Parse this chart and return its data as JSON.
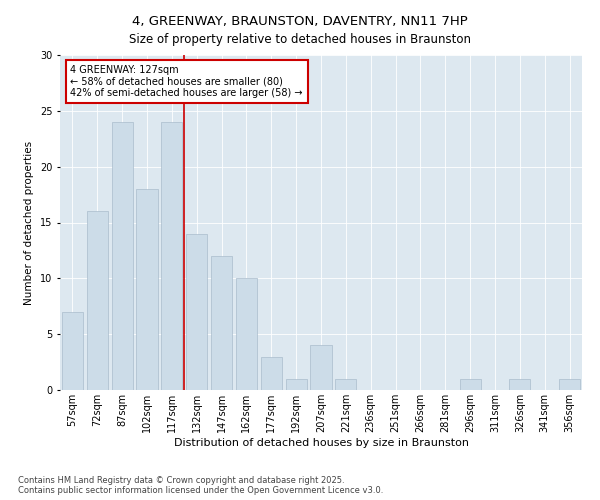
{
  "title": "4, GREENWAY, BRAUNSTON, DAVENTRY, NN11 7HP",
  "subtitle": "Size of property relative to detached houses in Braunston",
  "xlabel": "Distribution of detached houses by size in Braunston",
  "ylabel": "Number of detached properties",
  "categories": [
    "57sqm",
    "72sqm",
    "87sqm",
    "102sqm",
    "117sqm",
    "132sqm",
    "147sqm",
    "162sqm",
    "177sqm",
    "192sqm",
    "207sqm",
    "221sqm",
    "236sqm",
    "251sqm",
    "266sqm",
    "281sqm",
    "296sqm",
    "311sqm",
    "326sqm",
    "341sqm",
    "356sqm"
  ],
  "values": [
    7,
    16,
    24,
    18,
    24,
    14,
    12,
    10,
    3,
    1,
    4,
    1,
    0,
    0,
    0,
    0,
    1,
    0,
    1,
    0,
    1
  ],
  "bar_color": "#ccdce8",
  "bar_edge_color": "#aabccc",
  "vline_index": 4.5,
  "annotation_text": "4 GREENWAY: 127sqm\n← 58% of detached houses are smaller (80)\n42% of semi-detached houses are larger (58) →",
  "annotation_box_color": "#ffffff",
  "annotation_box_edge": "#cc0000",
  "vline_color": "#cc0000",
  "ylim": [
    0,
    30
  ],
  "yticks": [
    0,
    5,
    10,
    15,
    20,
    25,
    30
  ],
  "background_color": "#dde8f0",
  "footer": "Contains HM Land Registry data © Crown copyright and database right 2025.\nContains public sector information licensed under the Open Government Licence v3.0.",
  "title_fontsize": 9.5,
  "subtitle_fontsize": 8.5,
  "xlabel_fontsize": 8,
  "ylabel_fontsize": 7.5,
  "tick_fontsize": 7,
  "annotation_fontsize": 7,
  "footer_fontsize": 6
}
